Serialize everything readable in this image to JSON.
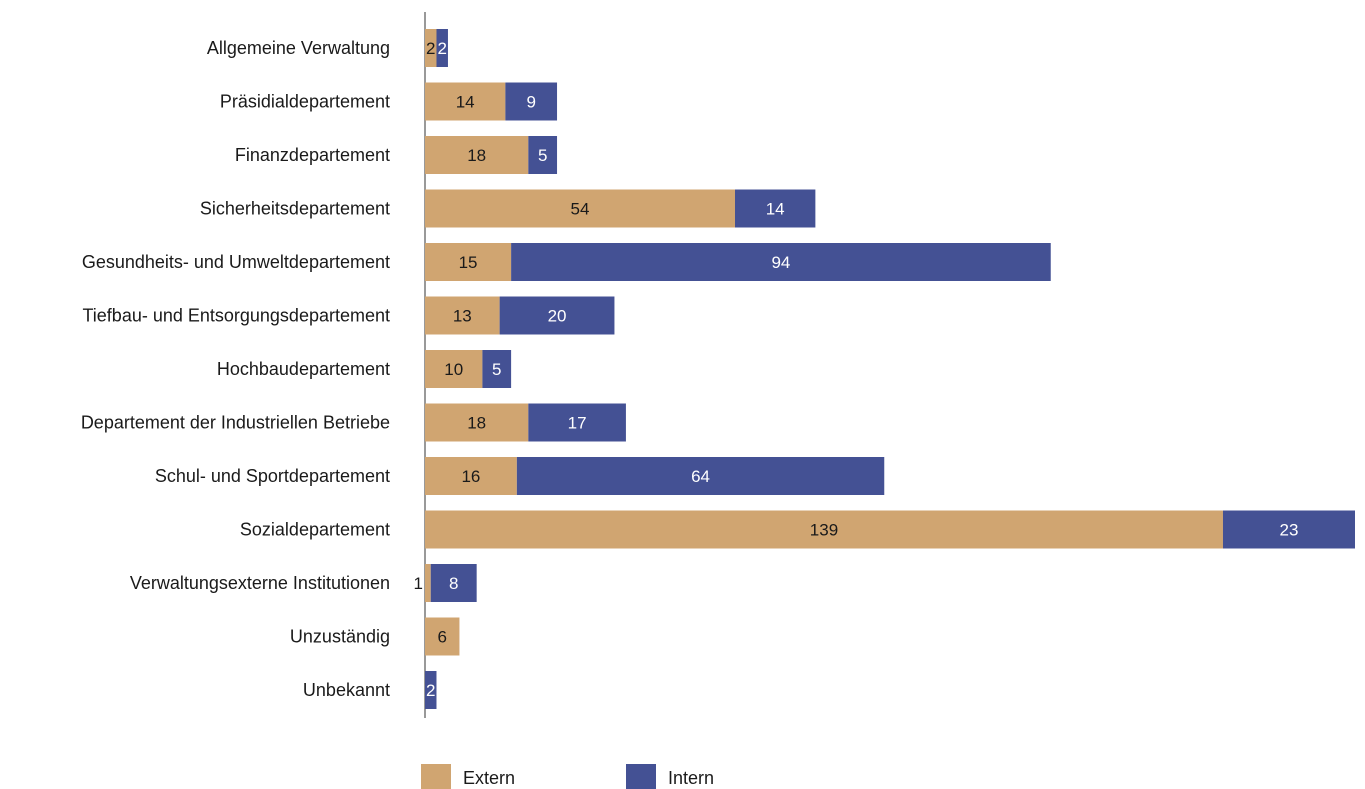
{
  "chart_data": {
    "type": "bar",
    "orientation": "horizontal",
    "stacked": true,
    "categories": [
      "Allgemeine Verwaltung",
      "Präsidialdepartement",
      "Finanzdepartement",
      "Sicherheitsdepartement",
      "Gesundheits- und Umweltdepartement",
      "Tiefbau- und Entsorgungsdepartement",
      "Hochbaudepartement",
      "Departement der Industriellen Betriebe",
      "Schul- und Sportdepartement",
      "Sozialdepartement",
      "Verwaltungsexterne Institutionen",
      "Unzuständig",
      "Unbekannt"
    ],
    "series": [
      {
        "name": "Extern",
        "color": "#d0a571",
        "label_color": "#1a1a1a",
        "values": [
          2,
          14,
          18,
          54,
          15,
          13,
          10,
          18,
          16,
          139,
          1,
          6,
          0
        ]
      },
      {
        "name": "Intern",
        "color": "#445194",
        "label_color": "#ffffff",
        "values": [
          2,
          9,
          5,
          14,
          94,
          20,
          5,
          17,
          64,
          23,
          8,
          0,
          2
        ]
      }
    ],
    "xlim": [
      0,
      162
    ],
    "grid": false,
    "legend_position": "bottom"
  }
}
